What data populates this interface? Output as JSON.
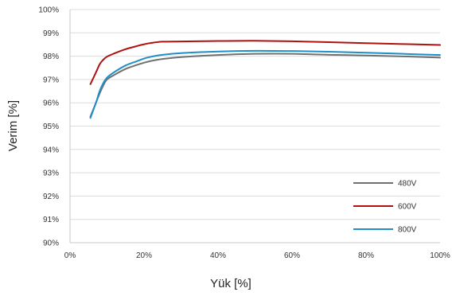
{
  "chart_data": {
    "type": "line",
    "title": "",
    "xlabel": "Yük [%]",
    "ylabel": "Verim [%]",
    "xlim": [
      0,
      100
    ],
    "ylim": [
      90,
      100
    ],
    "x_ticks": [
      "0%",
      "20%",
      "40%",
      "60%",
      "80%",
      "100%"
    ],
    "y_ticks": [
      "90%",
      "91%",
      "92%",
      "93%",
      "94%",
      "95%",
      "96%",
      "97%",
      "98%",
      "99%",
      "100%"
    ],
    "grid": "horizontal",
    "legend_position": "bottom-right",
    "series": [
      {
        "name": "480V",
        "color": "#707070",
        "x": [
          5.5,
          7,
          8,
          9,
          10,
          12,
          15,
          18,
          20,
          22,
          25,
          30,
          40,
          50,
          60,
          70,
          80,
          90,
          100
        ],
        "y": [
          95.4,
          96.0,
          96.4,
          96.75,
          97.0,
          97.2,
          97.45,
          97.62,
          97.72,
          97.8,
          97.88,
          97.96,
          98.05,
          98.1,
          98.1,
          98.06,
          98.03,
          97.99,
          97.94
        ]
      },
      {
        "name": "600V",
        "color": "#b01010",
        "x": [
          5.5,
          7,
          8,
          9,
          10,
          12,
          15,
          18,
          20,
          22,
          25,
          30,
          40,
          50,
          60,
          70,
          80,
          90,
          100
        ],
        "y": [
          96.8,
          97.3,
          97.65,
          97.85,
          97.98,
          98.12,
          98.3,
          98.43,
          98.51,
          98.57,
          98.62,
          98.63,
          98.65,
          98.66,
          98.64,
          98.6,
          98.56,
          98.52,
          98.48
        ]
      },
      {
        "name": "800V",
        "color": "#1e90c8",
        "x": [
          5.5,
          7,
          8,
          9,
          10,
          12,
          15,
          18,
          20,
          22,
          25,
          30,
          40,
          50,
          60,
          70,
          80,
          90,
          100
        ],
        "y": [
          95.35,
          96.0,
          96.5,
          96.85,
          97.08,
          97.32,
          97.6,
          97.78,
          97.9,
          97.98,
          98.06,
          98.13,
          98.2,
          98.23,
          98.22,
          98.19,
          98.15,
          98.1,
          98.05
        ]
      }
    ]
  }
}
